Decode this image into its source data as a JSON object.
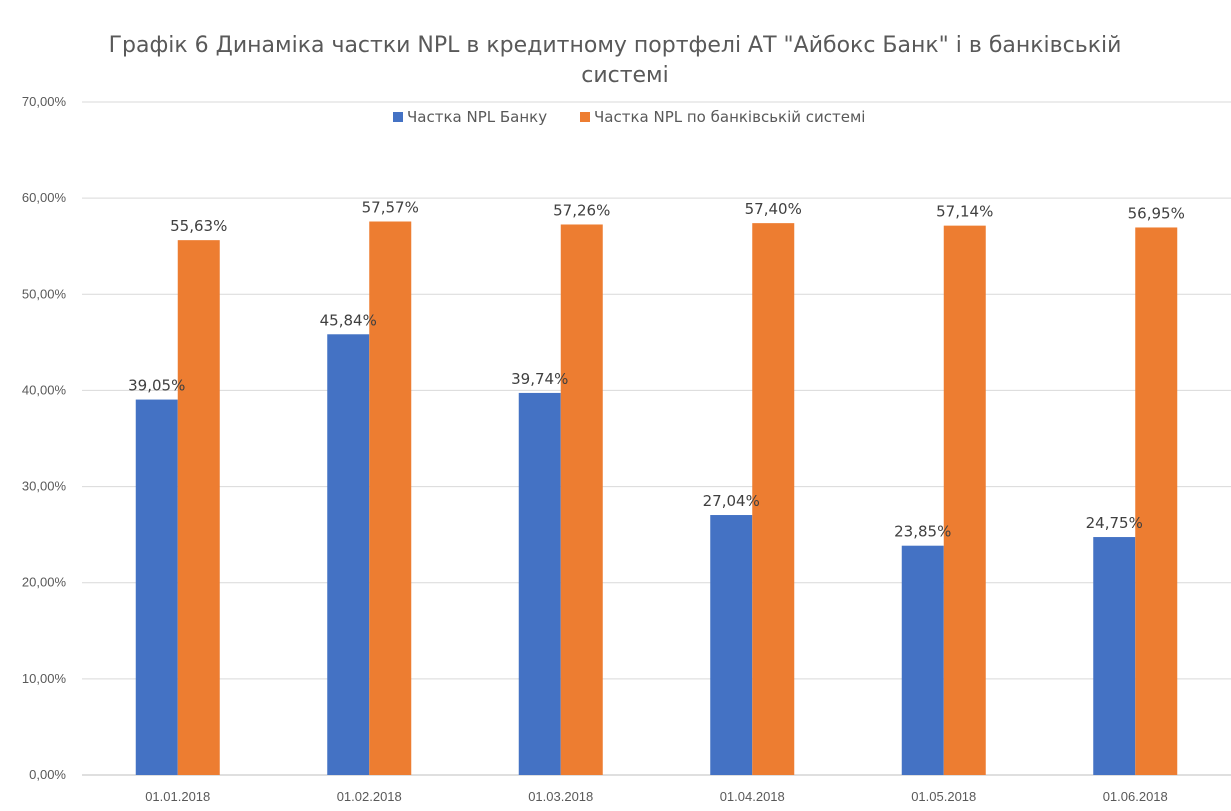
{
  "chart_data": {
    "type": "bar",
    "title": "Графік 6 Динаміка частки NPL в кредитному портфелі АТ \"Айбокс Банк\" і в банківській системі",
    "title_lines": [
      "Графік 6 Динаміка частки NPL в кредитному портфелі АТ \"Айбокс Банк\" і в банківській",
      "системі"
    ],
    "xlabel": "",
    "ylabel": "",
    "categories": [
      "01.01.2018",
      "01.02.2018",
      "01.03.2018",
      "01.04.2018",
      "01.05.2018",
      "01.06.2018"
    ],
    "series": [
      {
        "name": "Частка NPL Банку",
        "color": "#4472C4",
        "values": [
          39.05,
          45.84,
          39.74,
          27.04,
          23.85,
          24.75
        ],
        "labels": [
          "39,05%",
          "45,84%",
          "39,74%",
          "27,04%",
          "23,85%",
          "24,75%"
        ]
      },
      {
        "name": "Частка NPL по банківській системі",
        "color": "#ED7D31",
        "values": [
          55.63,
          57.57,
          57.26,
          57.4,
          57.14,
          56.95
        ],
        "labels": [
          "55,63%",
          "57,57%",
          "57,26%",
          "57,40%",
          "57,14%",
          "56,95%"
        ]
      }
    ],
    "ylim": [
      0,
      70
    ],
    "yticks": [
      0,
      10,
      20,
      30,
      40,
      50,
      60,
      70
    ],
    "ytick_labels": [
      "0,00%",
      "10,00%",
      "20,00%",
      "30,00%",
      "40,00%",
      "50,00%",
      "60,00%",
      "70,00%"
    ],
    "grid": true,
    "legend_position": "top",
    "gridline_color": "#d9d9d9"
  }
}
